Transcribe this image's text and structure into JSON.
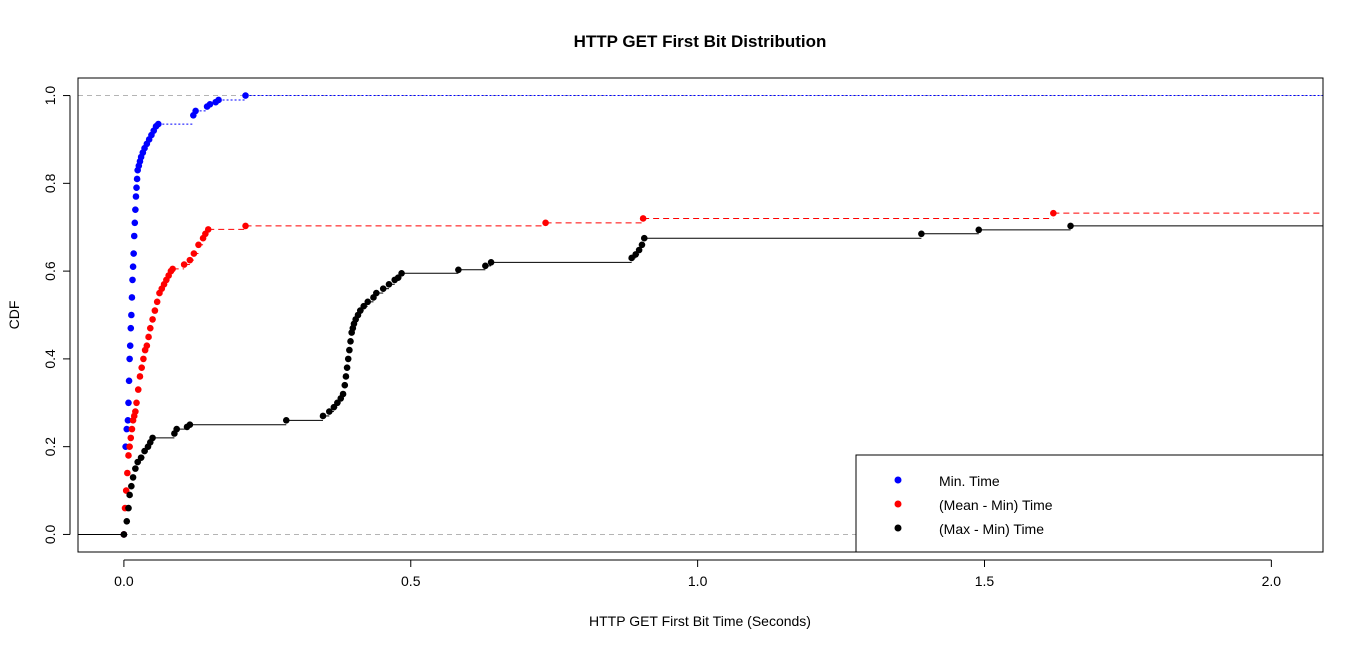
{
  "chart_data": {
    "type": "line",
    "title": "HTTP GET First Bit Distribution",
    "xlabel": "HTTP GET First Bit Time (Seconds)",
    "ylabel": "CDF",
    "xlim": [
      -0.08,
      2.09
    ],
    "ylim": [
      -0.04,
      1.04
    ],
    "x_ticks": [
      0.0,
      0.5,
      1.0,
      1.5,
      2.0
    ],
    "x_tick_labels": [
      "0.0",
      "0.5",
      "1.0",
      "1.5",
      "2.0"
    ],
    "y_ticks": [
      0.0,
      0.2,
      0.4,
      0.6,
      0.8,
      1.0
    ],
    "y_tick_labels": [
      "0.0",
      "0.2",
      "0.4",
      "0.6",
      "0.8",
      "1.0"
    ],
    "reference_lines_y": [
      0,
      1
    ],
    "grid": false,
    "legend_position": "bottom-right",
    "series": [
      {
        "name": "Min. Time",
        "color": "#0000ff",
        "line_style": "dotted",
        "x": [
          0.0,
          0.003,
          0.005,
          0.007,
          0.008,
          0.009,
          0.01,
          0.011,
          0.012,
          0.013,
          0.014,
          0.015,
          0.016,
          0.017,
          0.018,
          0.019,
          0.02,
          0.021,
          0.022,
          0.023,
          0.024,
          0.026,
          0.028,
          0.03,
          0.033,
          0.036,
          0.04,
          0.044,
          0.048,
          0.052,
          0.056,
          0.06,
          0.121,
          0.125,
          0.145,
          0.15,
          0.16,
          0.165,
          0.212
        ],
        "y": [
          0.0,
          0.2,
          0.24,
          0.26,
          0.3,
          0.35,
          0.4,
          0.43,
          0.47,
          0.5,
          0.54,
          0.58,
          0.61,
          0.64,
          0.68,
          0.71,
          0.74,
          0.77,
          0.79,
          0.81,
          0.83,
          0.84,
          0.85,
          0.86,
          0.87,
          0.88,
          0.89,
          0.9,
          0.91,
          0.92,
          0.93,
          0.935,
          0.955,
          0.965,
          0.975,
          0.98,
          0.985,
          0.99,
          1.0
        ]
      },
      {
        "name": "(Mean - Min) Time",
        "color": "#ff0000",
        "line_style": "dashed",
        "x": [
          0.0,
          0.002,
          0.004,
          0.006,
          0.008,
          0.01,
          0.012,
          0.014,
          0.016,
          0.018,
          0.02,
          0.022,
          0.025,
          0.028,
          0.031,
          0.034,
          0.037,
          0.04,
          0.043,
          0.046,
          0.05,
          0.054,
          0.058,
          0.062,
          0.066,
          0.07,
          0.074,
          0.078,
          0.082,
          0.085,
          0.105,
          0.115,
          0.122,
          0.13,
          0.138,
          0.142,
          0.147,
          0.212,
          0.735,
          0.905,
          1.62
        ],
        "y": [
          0.0,
          0.06,
          0.1,
          0.14,
          0.18,
          0.2,
          0.22,
          0.24,
          0.26,
          0.27,
          0.28,
          0.3,
          0.33,
          0.36,
          0.38,
          0.4,
          0.42,
          0.43,
          0.45,
          0.47,
          0.49,
          0.51,
          0.53,
          0.55,
          0.56,
          0.57,
          0.58,
          0.59,
          0.6,
          0.605,
          0.615,
          0.625,
          0.64,
          0.66,
          0.675,
          0.685,
          0.695,
          0.703,
          0.71,
          0.72,
          0.732
        ]
      },
      {
        "name": "(Max - Min) Time",
        "color": "#000000",
        "line_style": "solid",
        "x": [
          0.0,
          0.005,
          0.008,
          0.01,
          0.013,
          0.016,
          0.02,
          0.024,
          0.03,
          0.036,
          0.042,
          0.046,
          0.05,
          0.088,
          0.092,
          0.11,
          0.115,
          0.283,
          0.347,
          0.358,
          0.366,
          0.372,
          0.378,
          0.382,
          0.385,
          0.387,
          0.389,
          0.391,
          0.393,
          0.395,
          0.397,
          0.399,
          0.401,
          0.404,
          0.408,
          0.412,
          0.418,
          0.425,
          0.435,
          0.44,
          0.452,
          0.462,
          0.472,
          0.478,
          0.484,
          0.583,
          0.63,
          0.64,
          0.885,
          0.892,
          0.898,
          0.903,
          0.907,
          1.39,
          1.49,
          1.65
        ],
        "y": [
          0.0,
          0.03,
          0.06,
          0.09,
          0.11,
          0.13,
          0.15,
          0.165,
          0.175,
          0.19,
          0.2,
          0.21,
          0.22,
          0.23,
          0.24,
          0.245,
          0.25,
          0.26,
          0.27,
          0.28,
          0.29,
          0.3,
          0.31,
          0.32,
          0.34,
          0.36,
          0.38,
          0.4,
          0.42,
          0.44,
          0.46,
          0.47,
          0.48,
          0.49,
          0.5,
          0.51,
          0.52,
          0.53,
          0.54,
          0.55,
          0.56,
          0.57,
          0.58,
          0.585,
          0.595,
          0.603,
          0.612,
          0.62,
          0.63,
          0.638,
          0.648,
          0.66,
          0.675,
          0.685,
          0.694,
          0.703
        ]
      }
    ]
  }
}
